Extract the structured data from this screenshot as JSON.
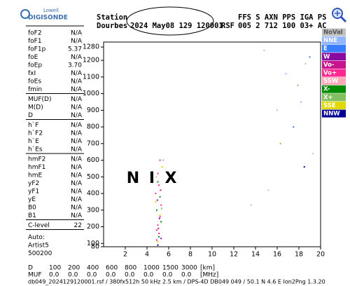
{
  "header": {
    "logo_top": "Lowell",
    "logo_bottom": "DIGISONDE",
    "station_label": "Station",
    "station": "Dourbes",
    "datetime": "2024 May08 129 120001",
    "file_type": "RSF",
    "columns": "FFS S AXN PPS IGA PS",
    "column_values": "005 2 712 100 03+ AC"
  },
  "params": {
    "groups": [
      [
        [
          "foF2",
          "N/A"
        ],
        [
          "foF1",
          "N/A"
        ],
        [
          "foF1p",
          "5.37"
        ],
        [
          "foE",
          "N/A"
        ],
        [
          "foEp",
          "3.70"
        ],
        [
          "fxI",
          "N/A"
        ],
        [
          "foEs",
          "N/A"
        ],
        [
          "fmin",
          "N/A"
        ]
      ],
      [
        [
          "MUF(D)",
          "N/A"
        ],
        [
          "M(D)",
          "N/A"
        ],
        [
          "D",
          "N/A"
        ]
      ],
      [
        [
          "h`F",
          "N/A"
        ],
        [
          "h`F2",
          "N/A"
        ],
        [
          "h`E",
          "N/A"
        ],
        [
          "h`Es",
          "N/A"
        ]
      ],
      [
        [
          "hmF2",
          "N/A"
        ],
        [
          "hmF1",
          "N/A"
        ],
        [
          "hmE",
          "N/A"
        ],
        [
          "yF2",
          "N/A"
        ],
        [
          "yF1",
          "N/A"
        ],
        [
          "yE",
          "N/A"
        ],
        [
          "B0",
          "N/A"
        ],
        [
          "B1",
          "N/A"
        ]
      ],
      [
        [
          "C-level",
          "22"
        ]
      ]
    ],
    "notes": [
      "Auto:",
      "Artist5",
      "500200"
    ]
  },
  "chart_data": {
    "type": "scatter",
    "xlim": [
      0,
      20
    ],
    "xticks": [
      2,
      4,
      6,
      8,
      10,
      12,
      14,
      16,
      18,
      20
    ],
    "ylim": [
      80,
      1310
    ],
    "yticks": [
      80,
      100,
      200,
      300,
      400,
      500,
      600,
      700,
      800,
      900,
      1000,
      1100,
      1200,
      1280
    ],
    "grid": false,
    "annotations": [
      "N",
      "I",
      "X"
    ],
    "series": [
      {
        "name": "NoVal",
        "color": "#c0c0c0",
        "x": [
          14.8,
          16.0,
          18.6,
          19.3,
          13.6
        ],
        "y": [
          1260,
          900,
          1180,
          640,
          330
        ]
      },
      {
        "name": "NNE",
        "color": "#8fb6ff",
        "x": [
          5.5,
          16.8,
          18.2
        ],
        "y": [
          600,
          1120,
          950
        ]
      },
      {
        "name": "E",
        "color": "#3a7cff",
        "x": [
          17.5,
          19.0
        ],
        "y": [
          800,
          1220
        ]
      },
      {
        "name": "W",
        "color": "#8a0aa0",
        "x": [
          5.15,
          4.95,
          5.3
        ],
        "y": [
          250,
          360,
          130
        ]
      },
      {
        "name": "Vo-",
        "color": "#c8148c",
        "x": [
          5.05,
          5.25
        ],
        "y": [
          190,
          420
        ]
      },
      {
        "name": "Vo+",
        "color": "#ff2890",
        "x": [
          4.9,
          5.1,
          5.0,
          5.2,
          5.3,
          4.8,
          5.1,
          5.0,
          5.2,
          4.9
        ],
        "y": [
          120,
          160,
          210,
          260,
          330,
          400,
          450,
          520,
          600,
          180
        ]
      },
      {
        "name": "SSW",
        "color": "#ffa8b8",
        "x": [
          4.85,
          15.2
        ],
        "y": [
          500,
          420
        ]
      },
      {
        "name": "X-",
        "color": "#008a00",
        "x": [
          5.1,
          5.3,
          4.9,
          5.2,
          5.0
        ],
        "y": [
          140,
          230,
          300,
          380,
          470
        ]
      },
      {
        "name": "X+",
        "color": "#80c060",
        "x": [
          5.35,
          16.3,
          17.9
        ],
        "y": [
          310,
          700,
          1050
        ]
      },
      {
        "name": "SSE",
        "color": "#e0d800",
        "x": [
          5.0,
          5.2,
          4.8,
          5.4
        ],
        "y": [
          110,
          270,
          350,
          560
        ]
      },
      {
        "name": "NNW",
        "color": "#000090",
        "x": [
          5.0,
          18.5
        ],
        "y": [
          90,
          560
        ]
      }
    ]
  },
  "bottom": {
    "d_label": "D",
    "d_values": [
      "100",
      "200",
      "400",
      "600",
      "800",
      "1000",
      "1500",
      "3000"
    ],
    "d_unit": "[km]",
    "muf_label": "MUF",
    "muf_values": [
      "0.0",
      "0.0",
      "0.0",
      "0.0",
      "0.0",
      "0.0",
      "0.0",
      "0.0"
    ],
    "muf_unit": "[MHz]",
    "footer": "db049_2024129120001.rsf / 380fx512h 50 kHz 2.5 km / DPS-4D DB049 049 / 50.1 N 4.6 E  Ion2Png 1.3.20"
  }
}
